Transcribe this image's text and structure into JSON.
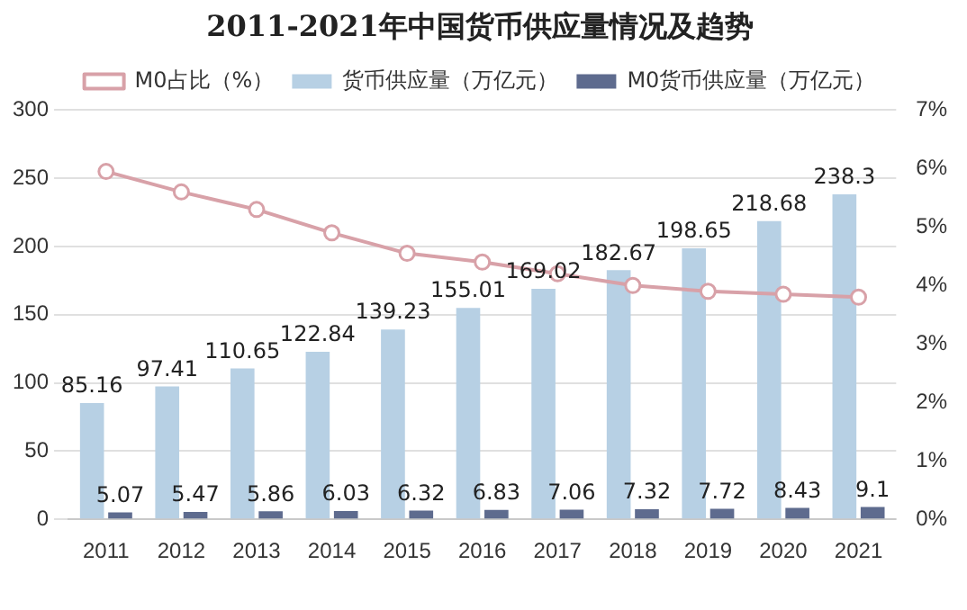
{
  "chart_data": {
    "type": "bar",
    "title": "2011-2021年中国货币供应量情况及趋势",
    "categories": [
      "2011",
      "2012",
      "2013",
      "2014",
      "2015",
      "2016",
      "2017",
      "2018",
      "2019",
      "2020",
      "2021"
    ],
    "series": [
      {
        "name": "货币供应量（万亿元）",
        "color": "#b7d0e4",
        "values": [
          85.16,
          97.41,
          110.65,
          122.84,
          139.23,
          155.01,
          169.02,
          182.67,
          198.65,
          218.68,
          238.3
        ],
        "value_labels": [
          "85.16",
          "97.41",
          "110.65",
          "122.84",
          "139.23",
          "155.01",
          "169.02",
          "182.67",
          "198.65",
          "218.68",
          "238.3"
        ]
      },
      {
        "name": "M0货币供应量（万亿元）",
        "color": "#5e6b8e",
        "values": [
          5.07,
          5.47,
          5.86,
          6.03,
          6.32,
          6.83,
          7.06,
          7.32,
          7.72,
          8.43,
          9.1
        ],
        "value_labels": [
          "5.07",
          "5.47",
          "5.86",
          "6.03",
          "6.32",
          "6.83",
          "7.06",
          "7.32",
          "7.72",
          "8.43",
          "9.1"
        ]
      },
      {
        "name": "M0占比（%）",
        "type": "line",
        "axis": "y2",
        "color": "#d8a1a8",
        "marker": "circle",
        "values": [
          5.95,
          5.6,
          5.3,
          4.9,
          4.55,
          4.4,
          4.2,
          4.0,
          3.9,
          3.85,
          3.8
        ]
      }
    ],
    "ylim": [
      0,
      300
    ],
    "yticks": [
      0,
      50,
      100,
      150,
      200,
      250,
      300
    ],
    "y2lim": [
      0,
      7
    ],
    "y2ticks": [
      {
        "value": 0,
        "label": "0%"
      },
      {
        "value": 1,
        "label": "1%"
      },
      {
        "value": 2,
        "label": "2%"
      },
      {
        "value": 3,
        "label": "3%"
      },
      {
        "value": 4,
        "label": "4%"
      },
      {
        "value": 5,
        "label": "5%"
      },
      {
        "value": 6,
        "label": "6%"
      },
      {
        "value": 7,
        "label": "7%"
      }
    ],
    "grid": "y",
    "legend": "top"
  }
}
